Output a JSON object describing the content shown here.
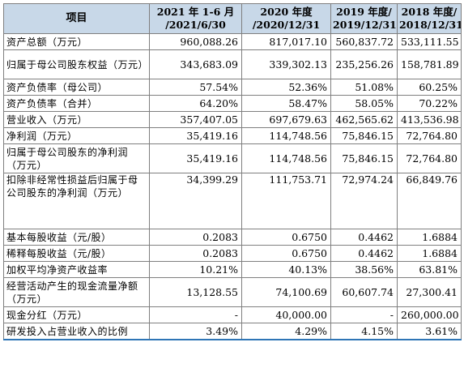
{
  "header": {
    "item": "项目",
    "col1_line1": "2021 年 1-6 月",
    "col1_line2": "/2021/6/30",
    "col2_line1": "2020 年度",
    "col2_line2": "/2020/12/31",
    "col3_line1": "2019 年度/",
    "col3_line2": "2019/12/31",
    "col4_line1": "2018 年度/",
    "col4_line2": "2018/12/31"
  },
  "rows": [
    {
      "label": "资产总额（万元）",
      "v1": "960,088.26",
      "v2": "817,017.10",
      "v3": "560,837.72",
      "v4": "533,111.55"
    },
    {
      "label": "归属于母公司股东权益（万元）",
      "v1": "343,683.09",
      "v2": "339,302.13",
      "v3": "235,256.26",
      "v4": "158,781.89"
    },
    {
      "label": "资产负债率（母公司）",
      "v1": "57.54%",
      "v2": "52.36%",
      "v3": "51.08%",
      "v4": "60.25%"
    },
    {
      "label": "资产负债率（合并）",
      "v1": "64.20%",
      "v2": "58.47%",
      "v3": "58.05%",
      "v4": "70.22%"
    },
    {
      "label": "营业收入（万元）",
      "v1": "357,407.05",
      "v2": "697,679.63",
      "v3": "462,565.62",
      "v4": "413,536.98"
    },
    {
      "label": "净利润（万元）",
      "v1": "35,419.16",
      "v2": "114,748.56",
      "v3": "75,846.15",
      "v4": "72,764.80"
    },
    {
      "label": "归属于母公司股东的净利润（万元）",
      "v1": "35,419.16",
      "v2": "114,748.56",
      "v3": "75,846.15",
      "v4": "72,764.80"
    },
    {
      "label": "扣除非经常性损益后归属于母公司股东的净利润（万元）",
      "v1": "34,399.29",
      "v2": "111,753.71",
      "v3": "72,974.24",
      "v4": "66,849.76"
    },
    {
      "label": "基本每股收益（元/股）",
      "v1": "0.2083",
      "v2": "0.6750",
      "v3": "0.4462",
      "v4": "1.6884"
    },
    {
      "label": "稀释每股收益（元/股）",
      "v1": "0.2083",
      "v2": "0.6750",
      "v3": "0.4462",
      "v4": "1.6884"
    },
    {
      "label": "加权平均净资产收益率",
      "v1": "10.21%",
      "v2": "40.13%",
      "v3": "38.56%",
      "v4": "63.81%"
    },
    {
      "label": "经营活动产生的现金流量净额（万元）",
      "v1": "13,128.55",
      "v2": "74,100.69",
      "v3": "60,607.74",
      "v4": "27,300.41"
    },
    {
      "label": "现金分红（万元）",
      "v1": "-",
      "v2": "40,000.00",
      "v3": "-",
      "v4": "260,000.00"
    },
    {
      "label": "研发投入占营业收入的比例",
      "v1": "3.49%",
      "v2": "4.29%",
      "v3": "4.15%",
      "v4": "3.61%"
    }
  ]
}
